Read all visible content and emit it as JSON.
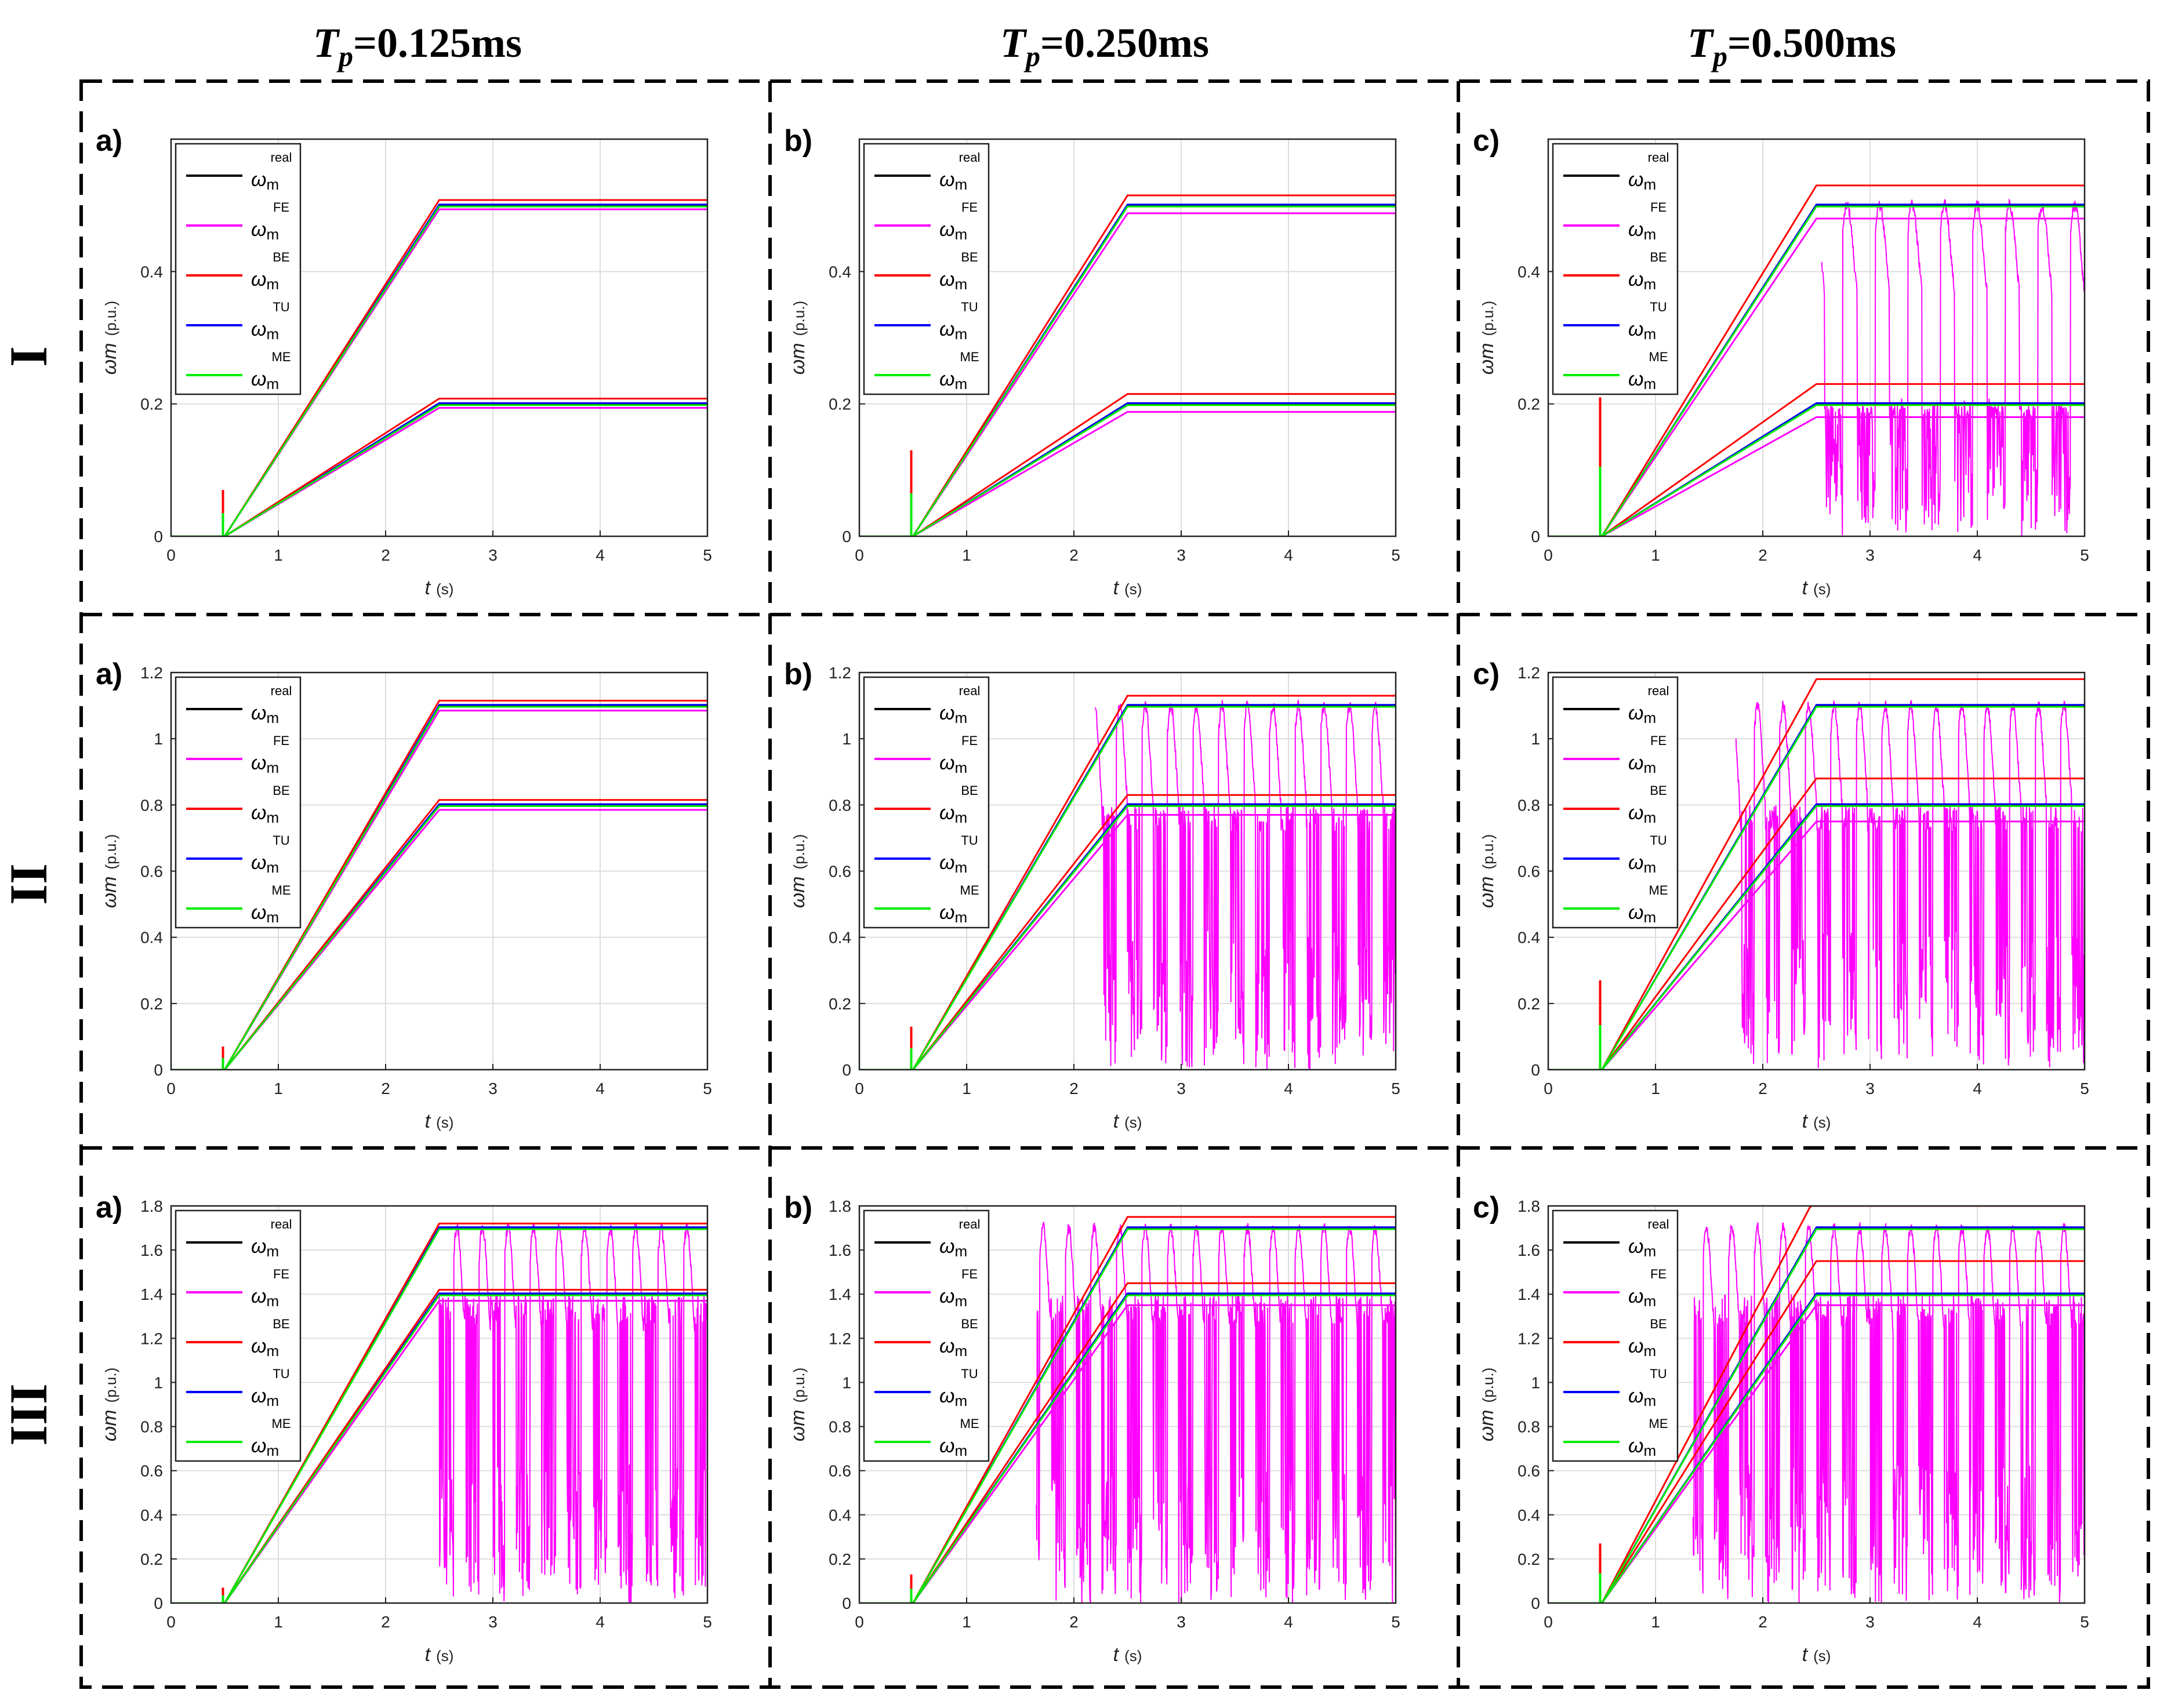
{
  "figure": {
    "columns": [
      {
        "prefix": "T",
        "sub": "p",
        "suffix": "=0.125ms"
      },
      {
        "prefix": "T",
        "sub": "p",
        "suffix": "=0.250ms"
      },
      {
        "prefix": "T",
        "sub": "p",
        "suffix": "=0.500ms"
      }
    ],
    "rows": [
      "I",
      "II",
      "III"
    ],
    "panel_letters": [
      "a)",
      "b)",
      "c)"
    ]
  },
  "chart_data": {
    "type": "line",
    "xlabel": "t",
    "xunit": "(s)",
    "ylabel": "ωm",
    "yunit": "(p.u.)",
    "xlim": [
      0,
      5
    ],
    "xticks": [
      0,
      1,
      2,
      3,
      4,
      5
    ],
    "legend": [
      {
        "symbol": "ω",
        "sub": "m",
        "sup": "real",
        "color": "#000000"
      },
      {
        "symbol": "ω",
        "sub": "m",
        "sup": "FE",
        "color": "#ff00ff"
      },
      {
        "symbol": "ω",
        "sub": "m",
        "sup": "BE",
        "color": "#ff0000"
      },
      {
        "symbol": "ω",
        "sub": "m",
        "sup": "TU",
        "color": "#0000ff"
      },
      {
        "symbol": "ω",
        "sub": "m",
        "sup": "ME",
        "color": "#00ee00"
      }
    ],
    "rows": [
      {
        "ylim": [
          0,
          0.6
        ],
        "yticks": [
          0,
          0.2,
          0.4
        ],
        "ytick_labels": [
          "0",
          "0.2",
          "0.4"
        ],
        "targets": [
          0.2,
          0.5
        ],
        "panels": [
          {
            "be_offset": 0.008,
            "fe_offset": -0.006,
            "spike": 0.07,
            "fe_mode": "stable"
          },
          {
            "be_offset": 0.015,
            "fe_offset": -0.012,
            "spike": 0.13,
            "fe_mode": "stable"
          },
          {
            "be_offset": 0.03,
            "fe_offset": -0.02,
            "spike": 0.21,
            "fe_mode": "unstable"
          }
        ]
      },
      {
        "ylim": [
          0,
          1.2
        ],
        "yticks": [
          0,
          0.2,
          0.4,
          0.6,
          0.8,
          1,
          1.2
        ],
        "ytick_labels": [
          "0",
          "0.2",
          "0.4",
          "0.6",
          "0.8",
          "1",
          "1.2"
        ],
        "targets": [
          0.8,
          1.1
        ],
        "panels": [
          {
            "be_offset": 0.015,
            "fe_offset": -0.015,
            "spike": 0.07,
            "fe_mode": "stable"
          },
          {
            "be_offset": 0.03,
            "fe_offset": -0.03,
            "spike": 0.13,
            "fe_mode": "unstable"
          },
          {
            "be_offset": 0.08,
            "fe_offset": -0.05,
            "spike": 0.27,
            "fe_mode": "unstable"
          }
        ]
      },
      {
        "ylim": [
          0,
          1.8
        ],
        "yticks": [
          0,
          0.2,
          0.4,
          0.6,
          0.8,
          1,
          1.2,
          1.4,
          1.6,
          1.8
        ],
        "ytick_labels": [
          "0",
          "0.2",
          "0.4",
          "0.6",
          "0.8",
          "1",
          "1.2",
          "1.4",
          "1.6",
          "1.8"
        ],
        "targets": [
          1.4,
          1.7
        ],
        "panels": [
          {
            "be_offset": 0.02,
            "fe_offset": -0.03,
            "spike": 0.07,
            "fe_mode": "unstable"
          },
          {
            "be_offset": 0.05,
            "fe_offset": -0.05,
            "spike": 0.13,
            "fe_mode": "unstable"
          },
          {
            "be_offset": 0.15,
            "fe_offset": -0.05,
            "spike": 0.27,
            "fe_mode": "unstable"
          }
        ]
      }
    ],
    "third_column_row3_yticks": [
      "0",
      "0.2",
      "0.4",
      "0.6",
      "0.8",
      "1",
      "1.2",
      "1.4",
      "1.6",
      "1.8"
    ]
  }
}
